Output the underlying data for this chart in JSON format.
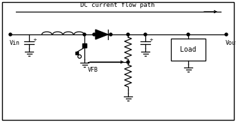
{
  "border_color": "#000000",
  "bg_color": "#ffffff",
  "line_color": "#000000",
  "text_color": "#000000",
  "title": "DC current flow path",
  "label_vin": "Vin",
  "label_vout": "Vout",
  "label_vfb": "VFB",
  "label_load": "Load",
  "figsize": [
    3.41,
    1.77
  ],
  "dpi": 100
}
